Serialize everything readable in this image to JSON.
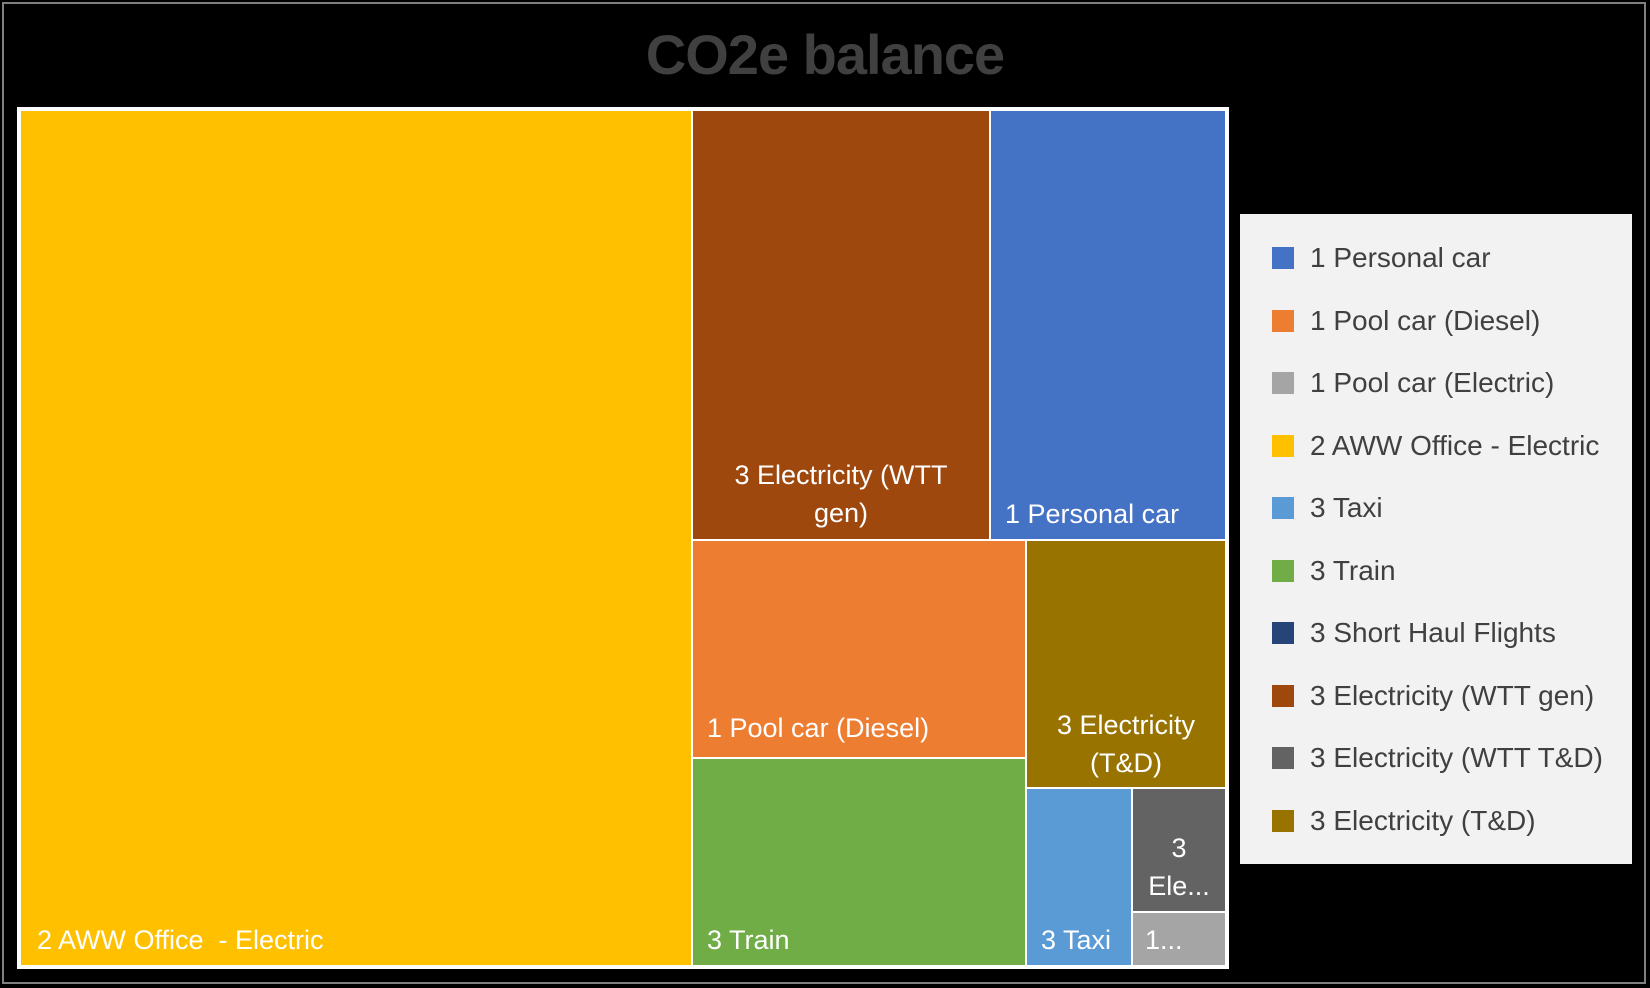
{
  "chart_data": {
    "type": "treemap",
    "title": "CO2e balance",
    "legend_position": "right",
    "legend": [
      {
        "name": "1 Personal car",
        "color": "#4472C4"
      },
      {
        "name": "1 Pool car (Diesel)",
        "color": "#ED7D31"
      },
      {
        "name": "1 Pool car (Electric)",
        "color": "#A5A5A5"
      },
      {
        "name": "2 AWW Office  - Electric",
        "color": "#FFC000"
      },
      {
        "name": "3 Taxi",
        "color": "#5B9BD5"
      },
      {
        "name": "3 Train",
        "color": "#70AD47"
      },
      {
        "name": "3 Short Haul Flights",
        "color": "#264478"
      },
      {
        "name": "3 Electricity (WTT gen)",
        "color": "#9E480E"
      },
      {
        "name": "3 Electricity (WTT T&D)",
        "color": "#636363"
      },
      {
        "name": "3 Electricity (T&D)",
        "color": "#997300"
      }
    ],
    "tiles": [
      {
        "label": "2 AWW Office  - Electric",
        "color": "#FFC000",
        "value": 46.7
      },
      {
        "label": "3 Electricity (WTT\ngen)",
        "color": "#9E480E",
        "value": 10.5
      },
      {
        "label": "1 Personal car",
        "color": "#4472C4",
        "value": 8.4
      },
      {
        "label": "1 Pool car (Diesel)",
        "color": "#ED7D31",
        "value": 6.1
      },
      {
        "label": "3 Train",
        "color": "#70AD47",
        "value": 5.5
      },
      {
        "label": "3 Electricity\n(T&D)",
        "color": "#997300",
        "value": 4.1
      },
      {
        "label": "3 Taxi",
        "color": "#5B9BD5",
        "value": 1.6
      },
      {
        "label": "3\nEle...",
        "color": "#636363",
        "value": 1.1
      },
      {
        "label": "1...",
        "color": "#A5A5A5",
        "value": 0.5
      }
    ]
  }
}
